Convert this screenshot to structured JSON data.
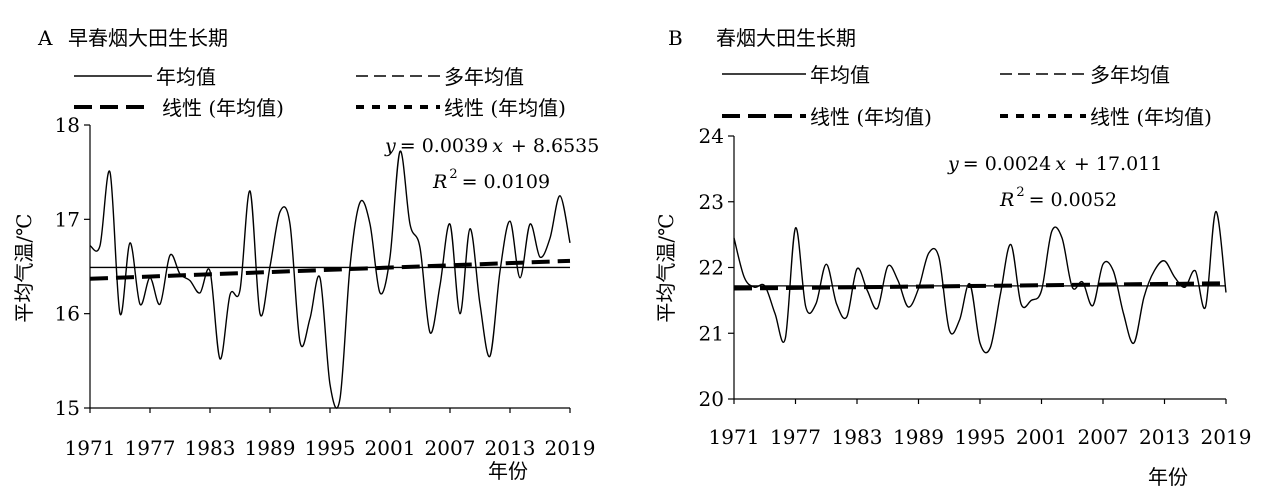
{
  "chart_data": [
    {
      "type": "line",
      "panel": "A",
      "title": "早春烟大田生长期",
      "ylabel": "平均气温/℃",
      "xlabel": "年份",
      "ylim": [
        15,
        18
      ],
      "yticks": [
        "15",
        "16",
        "17",
        "18"
      ],
      "xticks": [
        "1971",
        "1977",
        "1983",
        "1989",
        "1995",
        "2001",
        "2007",
        "2013",
        "2019"
      ],
      "legend": [
        "年均值",
        "多年均值",
        "线性 (年均值)",
        "线性 (年均值)"
      ],
      "equation": "y = 0.0039x + 8.6535",
      "r2": "R² = 0.0109",
      "equation_parts": {
        "y": "y",
        "eq_rest": "= 0.0039",
        "x": "x",
        "eq_tail": "+ 8.6535",
        "r": "R",
        "sup": "2",
        "r_rest": "= 0.0109"
      },
      "x": [
        1971,
        1972,
        1973,
        1974,
        1975,
        1976,
        1977,
        1978,
        1979,
        1980,
        1981,
        1982,
        1983,
        1984,
        1985,
        1986,
        1987,
        1988,
        1989,
        1990,
        1991,
        1992,
        1993,
        1994,
        1995,
        1996,
        1997,
        1998,
        1999,
        2000,
        2001,
        2002,
        2003,
        2004,
        2005,
        2006,
        2007,
        2008,
        2009,
        2010,
        2011,
        2012,
        2013,
        2014,
        2015,
        2016,
        2017,
        2018,
        2019
      ],
      "series": [
        {
          "values": [
            16.72,
            16.72,
            17.5,
            16.0,
            16.75,
            16.1,
            16.38,
            16.1,
            16.62,
            16.42,
            16.35,
            16.22,
            16.45,
            15.52,
            16.2,
            16.25,
            17.3,
            16.0,
            16.5,
            17.08,
            16.95,
            15.7,
            15.95,
            16.38,
            15.25,
            15.1,
            16.5,
            17.18,
            16.95,
            16.22,
            16.6,
            17.72,
            16.95,
            16.7,
            15.8,
            16.3,
            16.95,
            16.0,
            16.9,
            16.1,
            15.55,
            16.45,
            16.98,
            16.38,
            16.95,
            16.6,
            16.8,
            17.25,
            16.75
          ],
          "style": "annual"
        },
        {
          "mean": 16.49,
          "style": "mean"
        },
        {
          "trend": [
            16.37,
            16.56
          ],
          "style": "trend"
        }
      ]
    },
    {
      "type": "line",
      "panel": "B",
      "title": "春烟大田生长期",
      "ylabel": "平均气温/℃",
      "xlabel": "年份",
      "ylim": [
        20,
        24
      ],
      "yticks": [
        "20",
        "21",
        "22",
        "23",
        "24"
      ],
      "xticks": [
        "1971",
        "1977",
        "1983",
        "1989",
        "1995",
        "2001",
        "2007",
        "2013",
        "2019"
      ],
      "legend": [
        "年均值",
        "多年均值",
        "线性 (年均值)",
        "线性 (年均值)"
      ],
      "equation": "y = 0.0024x + 17.011",
      "r2": "R² = 0.0052",
      "equation_parts": {
        "y": "y",
        "eq_rest": "= 0.0024",
        "x": "x",
        "eq_tail": "+ 17.011",
        "r": "R",
        "sup": "2",
        "r_rest": "= 0.0052"
      },
      "x": [
        1971,
        1972,
        1973,
        1974,
        1975,
        1976,
        1977,
        1978,
        1979,
        1980,
        1981,
        1982,
        1983,
        1984,
        1985,
        1986,
        1987,
        1988,
        1989,
        1990,
        1991,
        1992,
        1993,
        1994,
        1995,
        1996,
        1997,
        1998,
        1999,
        2000,
        2001,
        2002,
        2003,
        2004,
        2005,
        2006,
        2007,
        2008,
        2009,
        2010,
        2011,
        2012,
        2013,
        2014,
        2015,
        2016,
        2017,
        2018,
        2019
      ],
      "series": [
        {
          "values": [
            22.45,
            21.85,
            21.7,
            21.72,
            21.3,
            20.92,
            22.6,
            21.4,
            21.45,
            22.05,
            21.45,
            21.25,
            21.98,
            21.65,
            21.38,
            22.02,
            21.8,
            21.4,
            21.68,
            22.22,
            22.15,
            21.05,
            21.2,
            21.75,
            20.85,
            20.78,
            21.6,
            22.35,
            21.45,
            21.5,
            21.65,
            22.55,
            22.45,
            21.7,
            21.78,
            21.42,
            22.05,
            21.95,
            21.3,
            20.85,
            21.55,
            21.95,
            22.1,
            21.85,
            21.7,
            21.95,
            21.4,
            22.85,
            21.62
          ],
          "style": "annual"
        },
        {
          "mean": 21.72,
          "style": "mean"
        },
        {
          "trend": [
            21.68,
            21.76
          ],
          "style": "trend"
        }
      ]
    }
  ]
}
